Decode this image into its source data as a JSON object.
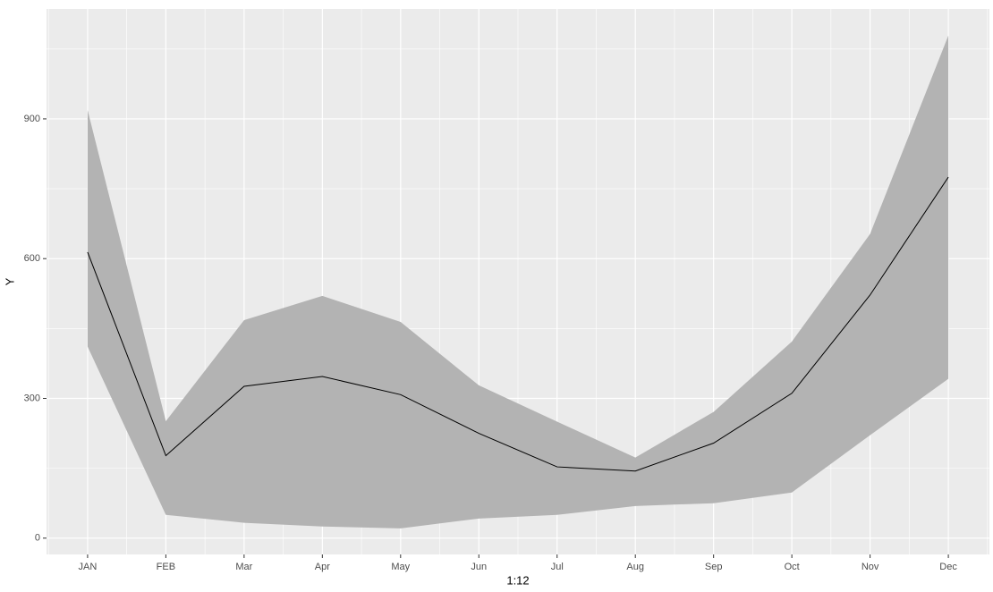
{
  "chart_data": {
    "type": "line",
    "x_label": "1:12",
    "y_label": "Y",
    "categories": [
      "JAN",
      "FEB",
      "Mar",
      "Apr",
      "May",
      "Jun",
      "Jul",
      "Aug",
      "Sep",
      "Oct",
      "Nov",
      "Dec"
    ],
    "series": [
      {
        "color": "#000000",
        "values": [
          614,
          177,
          326,
          347,
          308,
          225,
          153,
          144,
          204,
          311,
          522,
          775
        ]
      }
    ],
    "ribbon": {
      "color": "#b3b3b3",
      "lower": [
        411,
        50,
        33,
        25,
        21,
        42,
        50,
        69,
        75,
        98,
        221,
        342
      ],
      "upper": [
        919,
        251,
        468,
        520,
        464,
        328,
        250,
        173,
        271,
        422,
        653,
        1079
      ]
    },
    "ylim": [
      -35,
      1136
    ],
    "yticks": [
      0,
      300,
      600,
      900
    ],
    "grid": true
  }
}
